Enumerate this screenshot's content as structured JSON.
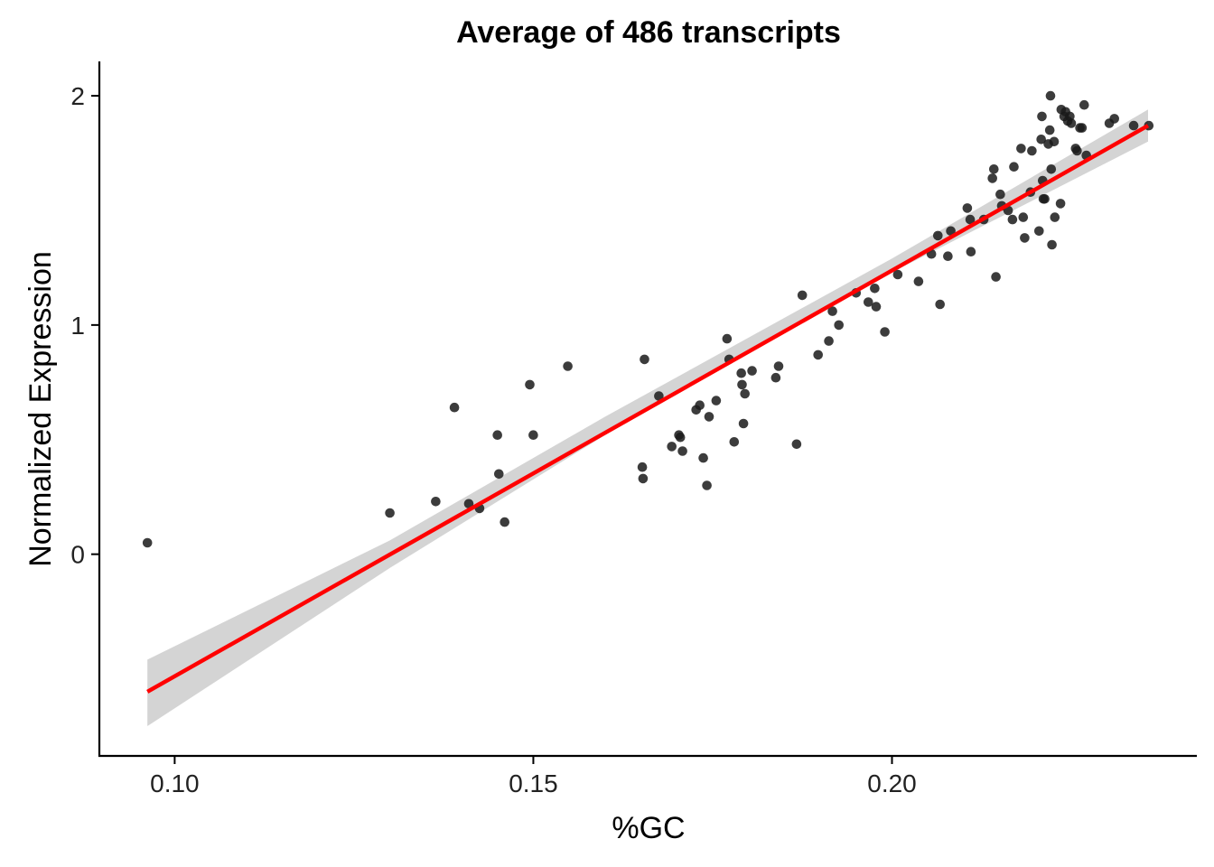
{
  "chart_data": {
    "type": "scatter",
    "title": "Average of 486 transcripts",
    "xlabel": "%GC",
    "ylabel": "Normalized Expression",
    "xlim": [
      0.0895,
      0.2425
    ],
    "ylim": [
      -0.88,
      2.15
    ],
    "x_ticks": [
      0.1,
      0.15,
      0.2
    ],
    "x_tick_labels": [
      "0.10",
      "0.15",
      "0.20"
    ],
    "y_ticks": [
      0,
      1,
      2
    ],
    "y_tick_labels": [
      "0",
      "1",
      "2"
    ],
    "grid": false,
    "legend": "none",
    "colors": {
      "points": "#1a1a1a",
      "fit_line": "#ff0000",
      "confidence_band": "#d4d4d4"
    },
    "fit_line": {
      "x": [
        0.0962,
        0.2357
      ],
      "y": [
        -0.6,
        1.87
      ]
    },
    "confidence_band": {
      "x": [
        0.0962,
        0.13,
        0.16,
        0.2,
        0.2357
      ],
      "lower": [
        -0.75,
        -0.06,
        0.52,
        1.23,
        1.8
      ],
      "upper": [
        -0.46,
        0.06,
        0.6,
        1.29,
        1.94
      ]
    },
    "points": [
      {
        "x": 0.0962,
        "y": 0.05
      },
      {
        "x": 0.13,
        "y": 0.18
      },
      {
        "x": 0.1364,
        "y": 0.23
      },
      {
        "x": 0.139,
        "y": 0.64
      },
      {
        "x": 0.141,
        "y": 0.22
      },
      {
        "x": 0.1425,
        "y": 0.2
      },
      {
        "x": 0.145,
        "y": 0.52
      },
      {
        "x": 0.1452,
        "y": 0.35
      },
      {
        "x": 0.146,
        "y": 0.14
      },
      {
        "x": 0.1495,
        "y": 0.74
      },
      {
        "x": 0.15,
        "y": 0.52
      },
      {
        "x": 0.1548,
        "y": 0.82
      },
      {
        "x": 0.1652,
        "y": 0.38
      },
      {
        "x": 0.1653,
        "y": 0.33
      },
      {
        "x": 0.1655,
        "y": 0.85
      },
      {
        "x": 0.1675,
        "y": 0.69
      },
      {
        "x": 0.1693,
        "y": 0.47
      },
      {
        "x": 0.1703,
        "y": 0.52
      },
      {
        "x": 0.1705,
        "y": 0.51
      },
      {
        "x": 0.1708,
        "y": 0.45
      },
      {
        "x": 0.1727,
        "y": 0.63
      },
      {
        "x": 0.1732,
        "y": 0.65
      },
      {
        "x": 0.1737,
        "y": 0.42
      },
      {
        "x": 0.1742,
        "y": 0.3
      },
      {
        "x": 0.1745,
        "y": 0.6
      },
      {
        "x": 0.1755,
        "y": 0.67
      },
      {
        "x": 0.177,
        "y": 0.94
      },
      {
        "x": 0.1773,
        "y": 0.85
      },
      {
        "x": 0.178,
        "y": 0.49
      },
      {
        "x": 0.179,
        "y": 0.79
      },
      {
        "x": 0.1791,
        "y": 0.74
      },
      {
        "x": 0.1793,
        "y": 0.57
      },
      {
        "x": 0.1795,
        "y": 0.7
      },
      {
        "x": 0.1805,
        "y": 0.8
      },
      {
        "x": 0.1838,
        "y": 0.77
      },
      {
        "x": 0.1842,
        "y": 0.82
      },
      {
        "x": 0.1867,
        "y": 0.48
      },
      {
        "x": 0.1875,
        "y": 1.13
      },
      {
        "x": 0.1897,
        "y": 0.87
      },
      {
        "x": 0.1912,
        "y": 0.93
      },
      {
        "x": 0.1917,
        "y": 1.06
      },
      {
        "x": 0.1926,
        "y": 1.0
      },
      {
        "x": 0.195,
        "y": 1.14
      },
      {
        "x": 0.1967,
        "y": 1.1
      },
      {
        "x": 0.1976,
        "y": 1.16
      },
      {
        "x": 0.1978,
        "y": 1.08
      },
      {
        "x": 0.199,
        "y": 0.97
      },
      {
        "x": 0.2008,
        "y": 1.22
      },
      {
        "x": 0.2037,
        "y": 1.19
      },
      {
        "x": 0.2055,
        "y": 1.31
      },
      {
        "x": 0.2064,
        "y": 1.39
      },
      {
        "x": 0.2067,
        "y": 1.09
      },
      {
        "x": 0.2078,
        "y": 1.3
      },
      {
        "x": 0.2082,
        "y": 1.41
      },
      {
        "x": 0.2105,
        "y": 1.51
      },
      {
        "x": 0.2109,
        "y": 1.46
      },
      {
        "x": 0.211,
        "y": 1.32
      },
      {
        "x": 0.2128,
        "y": 1.46
      },
      {
        "x": 0.214,
        "y": 1.64
      },
      {
        "x": 0.2142,
        "y": 1.68
      },
      {
        "x": 0.2145,
        "y": 1.21
      },
      {
        "x": 0.2151,
        "y": 1.57
      },
      {
        "x": 0.2153,
        "y": 1.52
      },
      {
        "x": 0.2162,
        "y": 1.5
      },
      {
        "x": 0.2168,
        "y": 1.46
      },
      {
        "x": 0.217,
        "y": 1.69
      },
      {
        "x": 0.218,
        "y": 1.77
      },
      {
        "x": 0.2183,
        "y": 1.47
      },
      {
        "x": 0.2185,
        "y": 1.38
      },
      {
        "x": 0.2193,
        "y": 1.58
      },
      {
        "x": 0.2195,
        "y": 1.76
      },
      {
        "x": 0.2205,
        "y": 1.41
      },
      {
        "x": 0.2208,
        "y": 1.81
      },
      {
        "x": 0.2209,
        "y": 1.91
      },
      {
        "x": 0.221,
        "y": 1.63
      },
      {
        "x": 0.2211,
        "y": 1.55
      },
      {
        "x": 0.2213,
        "y": 1.55
      },
      {
        "x": 0.2218,
        "y": 1.79
      },
      {
        "x": 0.222,
        "y": 1.85
      },
      {
        "x": 0.2221,
        "y": 2.0
      },
      {
        "x": 0.2222,
        "y": 1.68
      },
      {
        "x": 0.2223,
        "y": 1.35
      },
      {
        "x": 0.2226,
        "y": 1.8
      },
      {
        "x": 0.2227,
        "y": 1.47
      },
      {
        "x": 0.2235,
        "y": 1.53
      },
      {
        "x": 0.2236,
        "y": 1.94
      },
      {
        "x": 0.224,
        "y": 1.91
      },
      {
        "x": 0.2242,
        "y": 1.93
      },
      {
        "x": 0.2245,
        "y": 1.89
      },
      {
        "x": 0.2248,
        "y": 1.91
      },
      {
        "x": 0.225,
        "y": 1.88
      },
      {
        "x": 0.2256,
        "y": 1.77
      },
      {
        "x": 0.2258,
        "y": 1.76
      },
      {
        "x": 0.2262,
        "y": 1.86
      },
      {
        "x": 0.2265,
        "y": 1.86
      },
      {
        "x": 0.2268,
        "y": 1.96
      },
      {
        "x": 0.2271,
        "y": 1.74
      },
      {
        "x": 0.2303,
        "y": 1.88
      },
      {
        "x": 0.231,
        "y": 1.9
      },
      {
        "x": 0.2337,
        "y": 1.87
      },
      {
        "x": 0.2358,
        "y": 1.87
      }
    ]
  }
}
